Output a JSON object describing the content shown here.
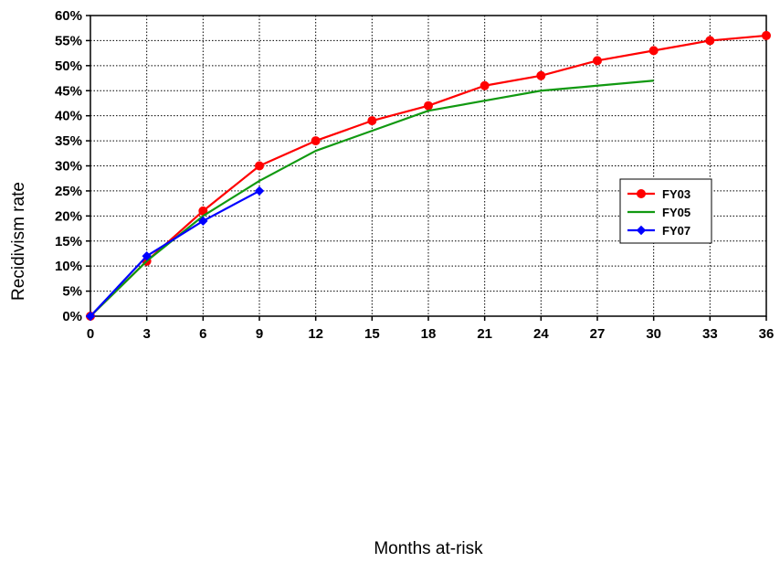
{
  "chart_data": {
    "type": "line",
    "title": "",
    "xlabel": "Months at-risk",
    "ylabel": "Recidivism rate",
    "xlim": [
      0,
      36
    ],
    "ylim": [
      0,
      60
    ],
    "x_ticks": [
      "0",
      "3",
      "6",
      "9",
      "12",
      "15",
      "18",
      "21",
      "24",
      "27",
      "30",
      "33",
      "36"
    ],
    "y_ticks": [
      "0%",
      "5%",
      "10%",
      "15%",
      "20%",
      "25%",
      "30%",
      "35%",
      "40%",
      "45%",
      "50%",
      "55%",
      "60%"
    ],
    "grid": true,
    "legend_position": "right",
    "series": [
      {
        "name": "FY03",
        "color": "#ff0000",
        "marker": "circle",
        "x": [
          0,
          3,
          6,
          9,
          12,
          15,
          18,
          21,
          24,
          27,
          30,
          33,
          36
        ],
        "values": [
          0,
          11,
          21,
          30,
          35,
          39,
          42,
          46,
          48,
          51,
          53,
          55,
          56
        ]
      },
      {
        "name": "FY05",
        "color": "#119911",
        "marker": "none",
        "x": [
          0,
          3,
          6,
          9,
          12,
          15,
          18,
          21,
          24,
          27,
          30
        ],
        "values": [
          0,
          11,
          20,
          27,
          33,
          37,
          41,
          43,
          45,
          46,
          47
        ]
      },
      {
        "name": "FY07",
        "color": "#0000ff",
        "marker": "diamond",
        "x": [
          0,
          3,
          6,
          9
        ],
        "values": [
          0,
          12,
          19,
          25
        ]
      }
    ]
  }
}
